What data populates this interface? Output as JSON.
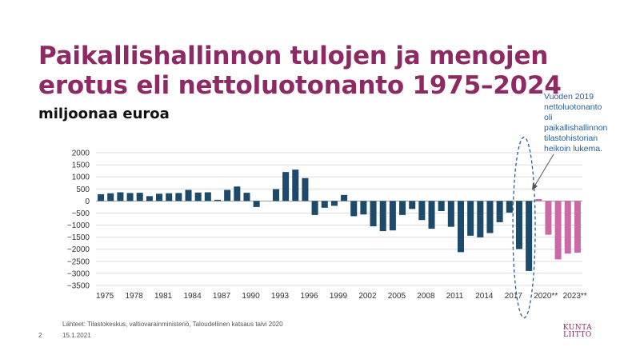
{
  "slide": {
    "title_line1": "Paikallishallinnon tulojen ja menojen",
    "title_line2": "erotus eli nettoluotonanto 1975–2024",
    "subtitle": "miljoonaa euroa",
    "annotation": [
      "Vuoden 2019",
      "nettoluotonanto",
      "oli",
      "paikallishallinnon",
      "tilastohistorian",
      "heikoin lukema."
    ],
    "source": "Lähteet: Tilastokeskus, valtiovarainministeriö, Taloudellinen katsaus talvi 2020",
    "date": "15.1.2021",
    "page_number": "2",
    "logo": [
      "KUNTA",
      "LIITTO"
    ],
    "colors": {
      "title": "#8e2a63",
      "actual_bar": "#1c4a6b",
      "forecast_bar": "#c96aa6",
      "annotation": "#2d5f9a"
    }
  },
  "chart_data": {
    "type": "bar",
    "title": "",
    "xlabel": "",
    "ylabel": "",
    "ylim": [
      -3500,
      2000
    ],
    "yticks": [
      2000,
      1500,
      1000,
      500,
      0,
      -500,
      -1000,
      -1500,
      -2000,
      -2500,
      -3000,
      -3500
    ],
    "grid": true,
    "x_tick_labels": [
      "1975",
      "1978",
      "1981",
      "1984",
      "1987",
      "1990",
      "1993",
      "1996",
      "1999",
      "2002",
      "2005",
      "2008",
      "2011",
      "2014",
      "2017",
      "2020**",
      "2023**"
    ],
    "categories": [
      "1975",
      "1976",
      "1977",
      "1978",
      "1979",
      "1980",
      "1981",
      "1982",
      "1983",
      "1984",
      "1985",
      "1986",
      "1987",
      "1988",
      "1989",
      "1990",
      "1991",
      "1992",
      "1993",
      "1994",
      "1995",
      "1996",
      "1997",
      "1998",
      "1999",
      "2000",
      "2001",
      "2002",
      "2003",
      "2004",
      "2005",
      "2006",
      "2007",
      "2008",
      "2009",
      "2010",
      "2011",
      "2012",
      "2013",
      "2014",
      "2015",
      "2016",
      "2017",
      "2018",
      "2019",
      "2020",
      "2021",
      "2022",
      "2023",
      "2024"
    ],
    "series": [
      {
        "values": [
          280,
          320,
          360,
          330,
          340,
          200,
          300,
          320,
          330,
          460,
          350,
          360,
          50,
          460,
          600,
          340,
          -250,
          null,
          490,
          1200,
          1300,
          950,
          -580,
          -280,
          -200,
          250,
          -630,
          -560,
          -1050,
          -1250,
          -1220,
          -580,
          -330,
          -790,
          -1150,
          -420,
          -1070,
          -2120,
          -1440,
          -1510,
          -1330,
          -880,
          -480,
          -1990,
          -2900,
          80,
          -1400,
          -2420,
          -2180,
          -2140
        ]
      }
    ],
    "forecast_from": "2020",
    "highlight": "2019"
  }
}
